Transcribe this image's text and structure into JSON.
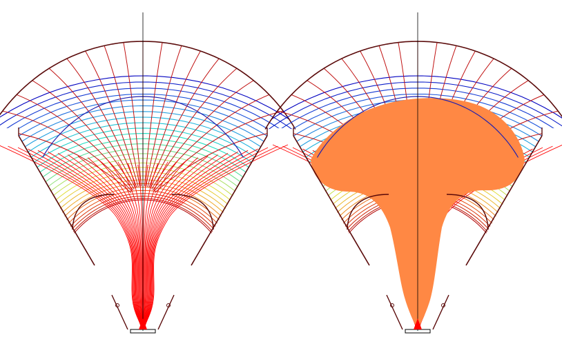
{
  "panels": [
    {
      "id": "left",
      "shaded_region": false,
      "field_lines": 30,
      "equipotential_levels": 28
    },
    {
      "id": "right",
      "shaded_region": true,
      "field_lines": 30,
      "equipotential_levels": 28
    }
  ],
  "colors": {
    "background": "#ffffff",
    "outline": "#5a0a0a",
    "axis": "#000000",
    "boundary_blue": "#2020b0",
    "field_line_core": "#ff0000",
    "field_line_outer": "#c01010",
    "shaded_region": "#ff8844",
    "palette": [
      "#0000c0",
      "#2060e0",
      "#20b0e0",
      "#20e0c0",
      "#80e080",
      "#e0e040",
      "#f0a020",
      "#e04010",
      "#b00000"
    ]
  }
}
